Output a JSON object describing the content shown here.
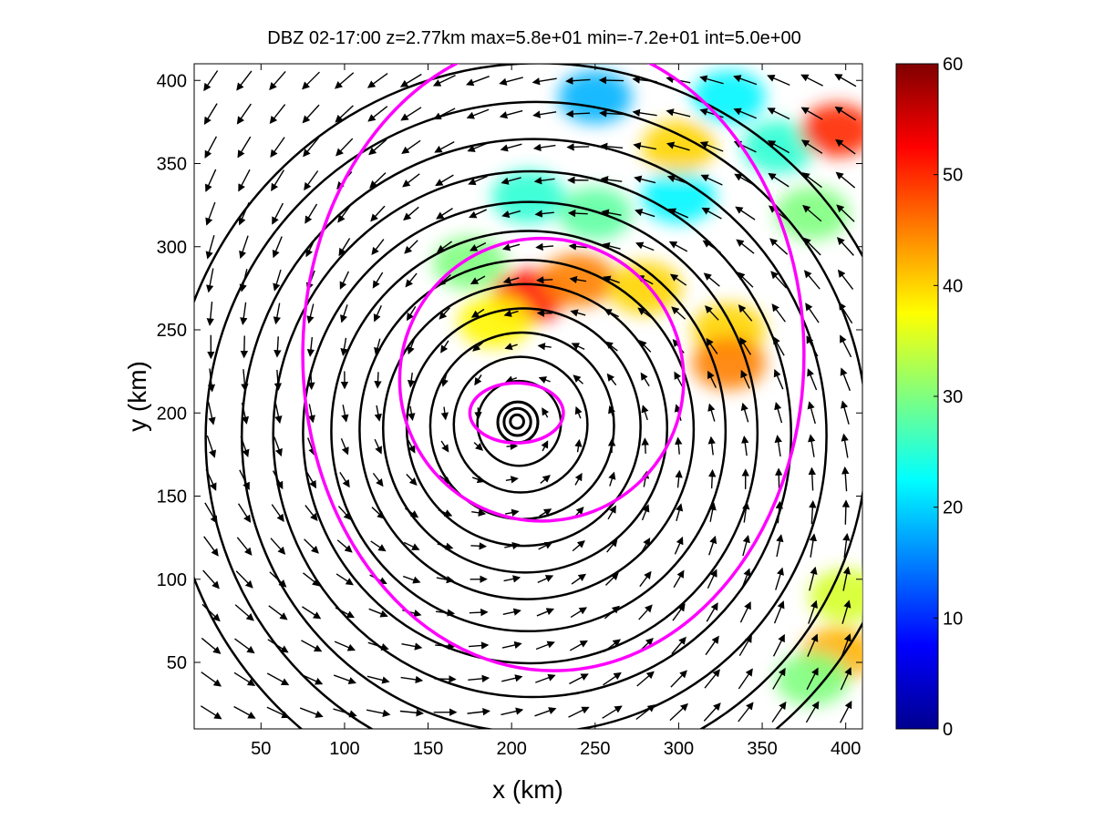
{
  "chart_data": {
    "type": "heatmap",
    "title": "DBZ 02-17:00 z=2.77km max=5.8e+01 min=-7.2e+01 int=5.0e+00",
    "xlabel": "x (km)",
    "ylabel": "y (km)",
    "xlim": [
      10,
      410
    ],
    "ylim": [
      10,
      410
    ],
    "xticks": [
      50,
      100,
      150,
      200,
      250,
      300,
      350,
      400
    ],
    "yticks": [
      50,
      100,
      150,
      200,
      250,
      300,
      350,
      400
    ],
    "colorbar": {
      "min": 0,
      "max": 60,
      "ticks": [
        0,
        10,
        20,
        30,
        40,
        50,
        60
      ],
      "colormap": "jet"
    },
    "storm_center": {
      "x": 203,
      "y": 195
    },
    "reflectivity_regions": [
      {
        "x": 210,
        "y": 270,
        "value": 52
      },
      {
        "x": 240,
        "y": 280,
        "value": 45
      },
      {
        "x": 280,
        "y": 275,
        "value": 40
      },
      {
        "x": 190,
        "y": 255,
        "value": 38
      },
      {
        "x": 175,
        "y": 290,
        "value": 30
      },
      {
        "x": 210,
        "y": 330,
        "value": 25
      },
      {
        "x": 250,
        "y": 320,
        "value": 28
      },
      {
        "x": 300,
        "y": 330,
        "value": 22
      },
      {
        "x": 250,
        "y": 390,
        "value": 18
      },
      {
        "x": 330,
        "y": 390,
        "value": 22
      },
      {
        "x": 360,
        "y": 360,
        "value": 25
      },
      {
        "x": 380,
        "y": 320,
        "value": 30
      },
      {
        "x": 330,
        "y": 250,
        "value": 40
      },
      {
        "x": 330,
        "y": 230,
        "value": 45
      },
      {
        "x": 395,
        "y": 370,
        "value": 50
      },
      {
        "x": 300,
        "y": 360,
        "value": 40
      },
      {
        "x": 400,
        "y": 90,
        "value": 35
      },
      {
        "x": 395,
        "y": 55,
        "value": 42
      },
      {
        "x": 380,
        "y": 40,
        "value": 30
      }
    ],
    "magenta_contours": [
      {
        "cx": 203,
        "cy": 200,
        "rx": 28,
        "ry": 18
      },
      {
        "cx": 218,
        "cy": 220,
        "rx": 85,
        "ry": 85
      },
      {
        "cx": 225,
        "cy": 235,
        "rx": 150,
        "ry": 190
      }
    ],
    "black_contours": {
      "cx": 203,
      "cy": 195,
      "radii": [
        4,
        8,
        12,
        25,
        40,
        55,
        70,
        85,
        100,
        118,
        136,
        155,
        175,
        198,
        222
      ]
    },
    "wind_field": {
      "rotation": "counterclockwise",
      "center": {
        "x": 203,
        "y": 195
      },
      "spacing_km": 20
    },
    "colors": {
      "magenta": "#ff00ff",
      "contour": "#000000"
    }
  }
}
